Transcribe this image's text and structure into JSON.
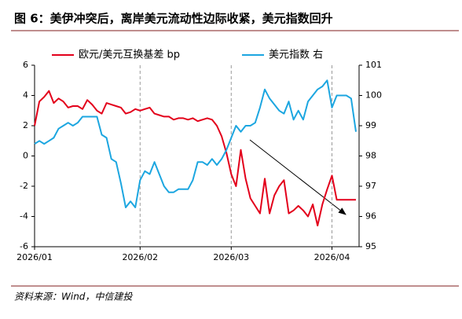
{
  "chart_data": {
    "type": "line",
    "title": "图 6：美伊冲突后，离岸美元流动性边际收紧，美元指数回升",
    "source": "资料来源：Wind，中信建投",
    "categories": [
      "2026/01",
      null,
      null,
      null,
      null,
      null,
      null,
      null,
      null,
      null,
      null,
      null,
      null,
      null,
      null,
      null,
      null,
      null,
      null,
      null,
      null,
      null,
      "2026/02",
      null,
      null,
      null,
      null,
      null,
      null,
      null,
      null,
      null,
      null,
      null,
      null,
      null,
      null,
      null,
      null,
      null,
      null,
      "2026/03",
      null,
      null,
      null,
      null,
      null,
      null,
      null,
      null,
      null,
      null,
      null,
      null,
      null,
      null,
      null,
      null,
      null,
      null,
      null,
      null,
      "2026/04",
      null,
      null,
      null,
      null,
      null
    ],
    "series": [
      {
        "name": "欧元/美元互换基差 bp",
        "color": "#e3001b",
        "values": [
          2.0,
          3.6,
          3.9,
          4.3,
          3.5,
          3.8,
          3.6,
          3.2,
          3.3,
          3.3,
          3.1,
          3.7,
          3.4,
          3.0,
          2.8,
          3.5,
          3.4,
          3.3,
          3.2,
          2.8,
          2.9,
          3.1,
          3.0,
          3.1,
          3.2,
          2.8,
          2.7,
          2.6,
          2.6,
          2.4,
          2.5,
          2.5,
          2.4,
          2.5,
          2.3,
          2.4,
          2.5,
          2.4,
          2.0,
          1.3,
          0.2,
          -1.2,
          -2.0,
          0.4,
          -1.5,
          -2.8,
          -3.3,
          -3.8,
          -1.5,
          -3.8,
          -2.6,
          -2.0,
          -1.6,
          -3.8,
          -3.6,
          -3.3,
          -3.6,
          -4.0,
          -3.2,
          -4.6,
          -3.2,
          -2.2,
          -1.3,
          -2.9,
          -2.9,
          -2.9,
          -2.9,
          -2.9
        ]
      },
      {
        "name": "美元指数 右",
        "color": "#1ca6e0",
        "axis": "y2",
        "values": [
          98.4,
          98.5,
          98.4,
          98.5,
          98.6,
          98.9,
          99.0,
          99.1,
          99.0,
          99.1,
          99.3,
          99.3,
          99.3,
          99.3,
          98.7,
          98.6,
          97.9,
          97.8,
          97.1,
          96.3,
          96.5,
          96.3,
          97.2,
          97.5,
          97.4,
          97.8,
          97.4,
          97.0,
          96.8,
          96.8,
          96.9,
          96.9,
          96.9,
          97.2,
          97.8,
          97.8,
          97.7,
          97.9,
          97.7,
          97.9,
          98.2,
          98.6,
          99.0,
          98.8,
          99.0,
          99.0,
          99.1,
          99.6,
          100.2,
          99.9,
          99.7,
          99.5,
          99.4,
          99.8,
          99.2,
          99.5,
          99.2,
          99.8,
          100.0,
          100.2,
          100.3,
          100.5,
          99.6,
          100.0,
          100.0,
          100.0,
          99.9,
          98.8
        ]
      }
    ],
    "ylim": [
      -6,
      6
    ],
    "yticks": [
      -6,
      -4,
      -2,
      0,
      2,
      4,
      6
    ],
    "y2lim": [
      95,
      101
    ],
    "y2ticks": [
      95,
      96,
      97,
      98,
      99,
      100,
      101
    ],
    "legend": "top"
  }
}
